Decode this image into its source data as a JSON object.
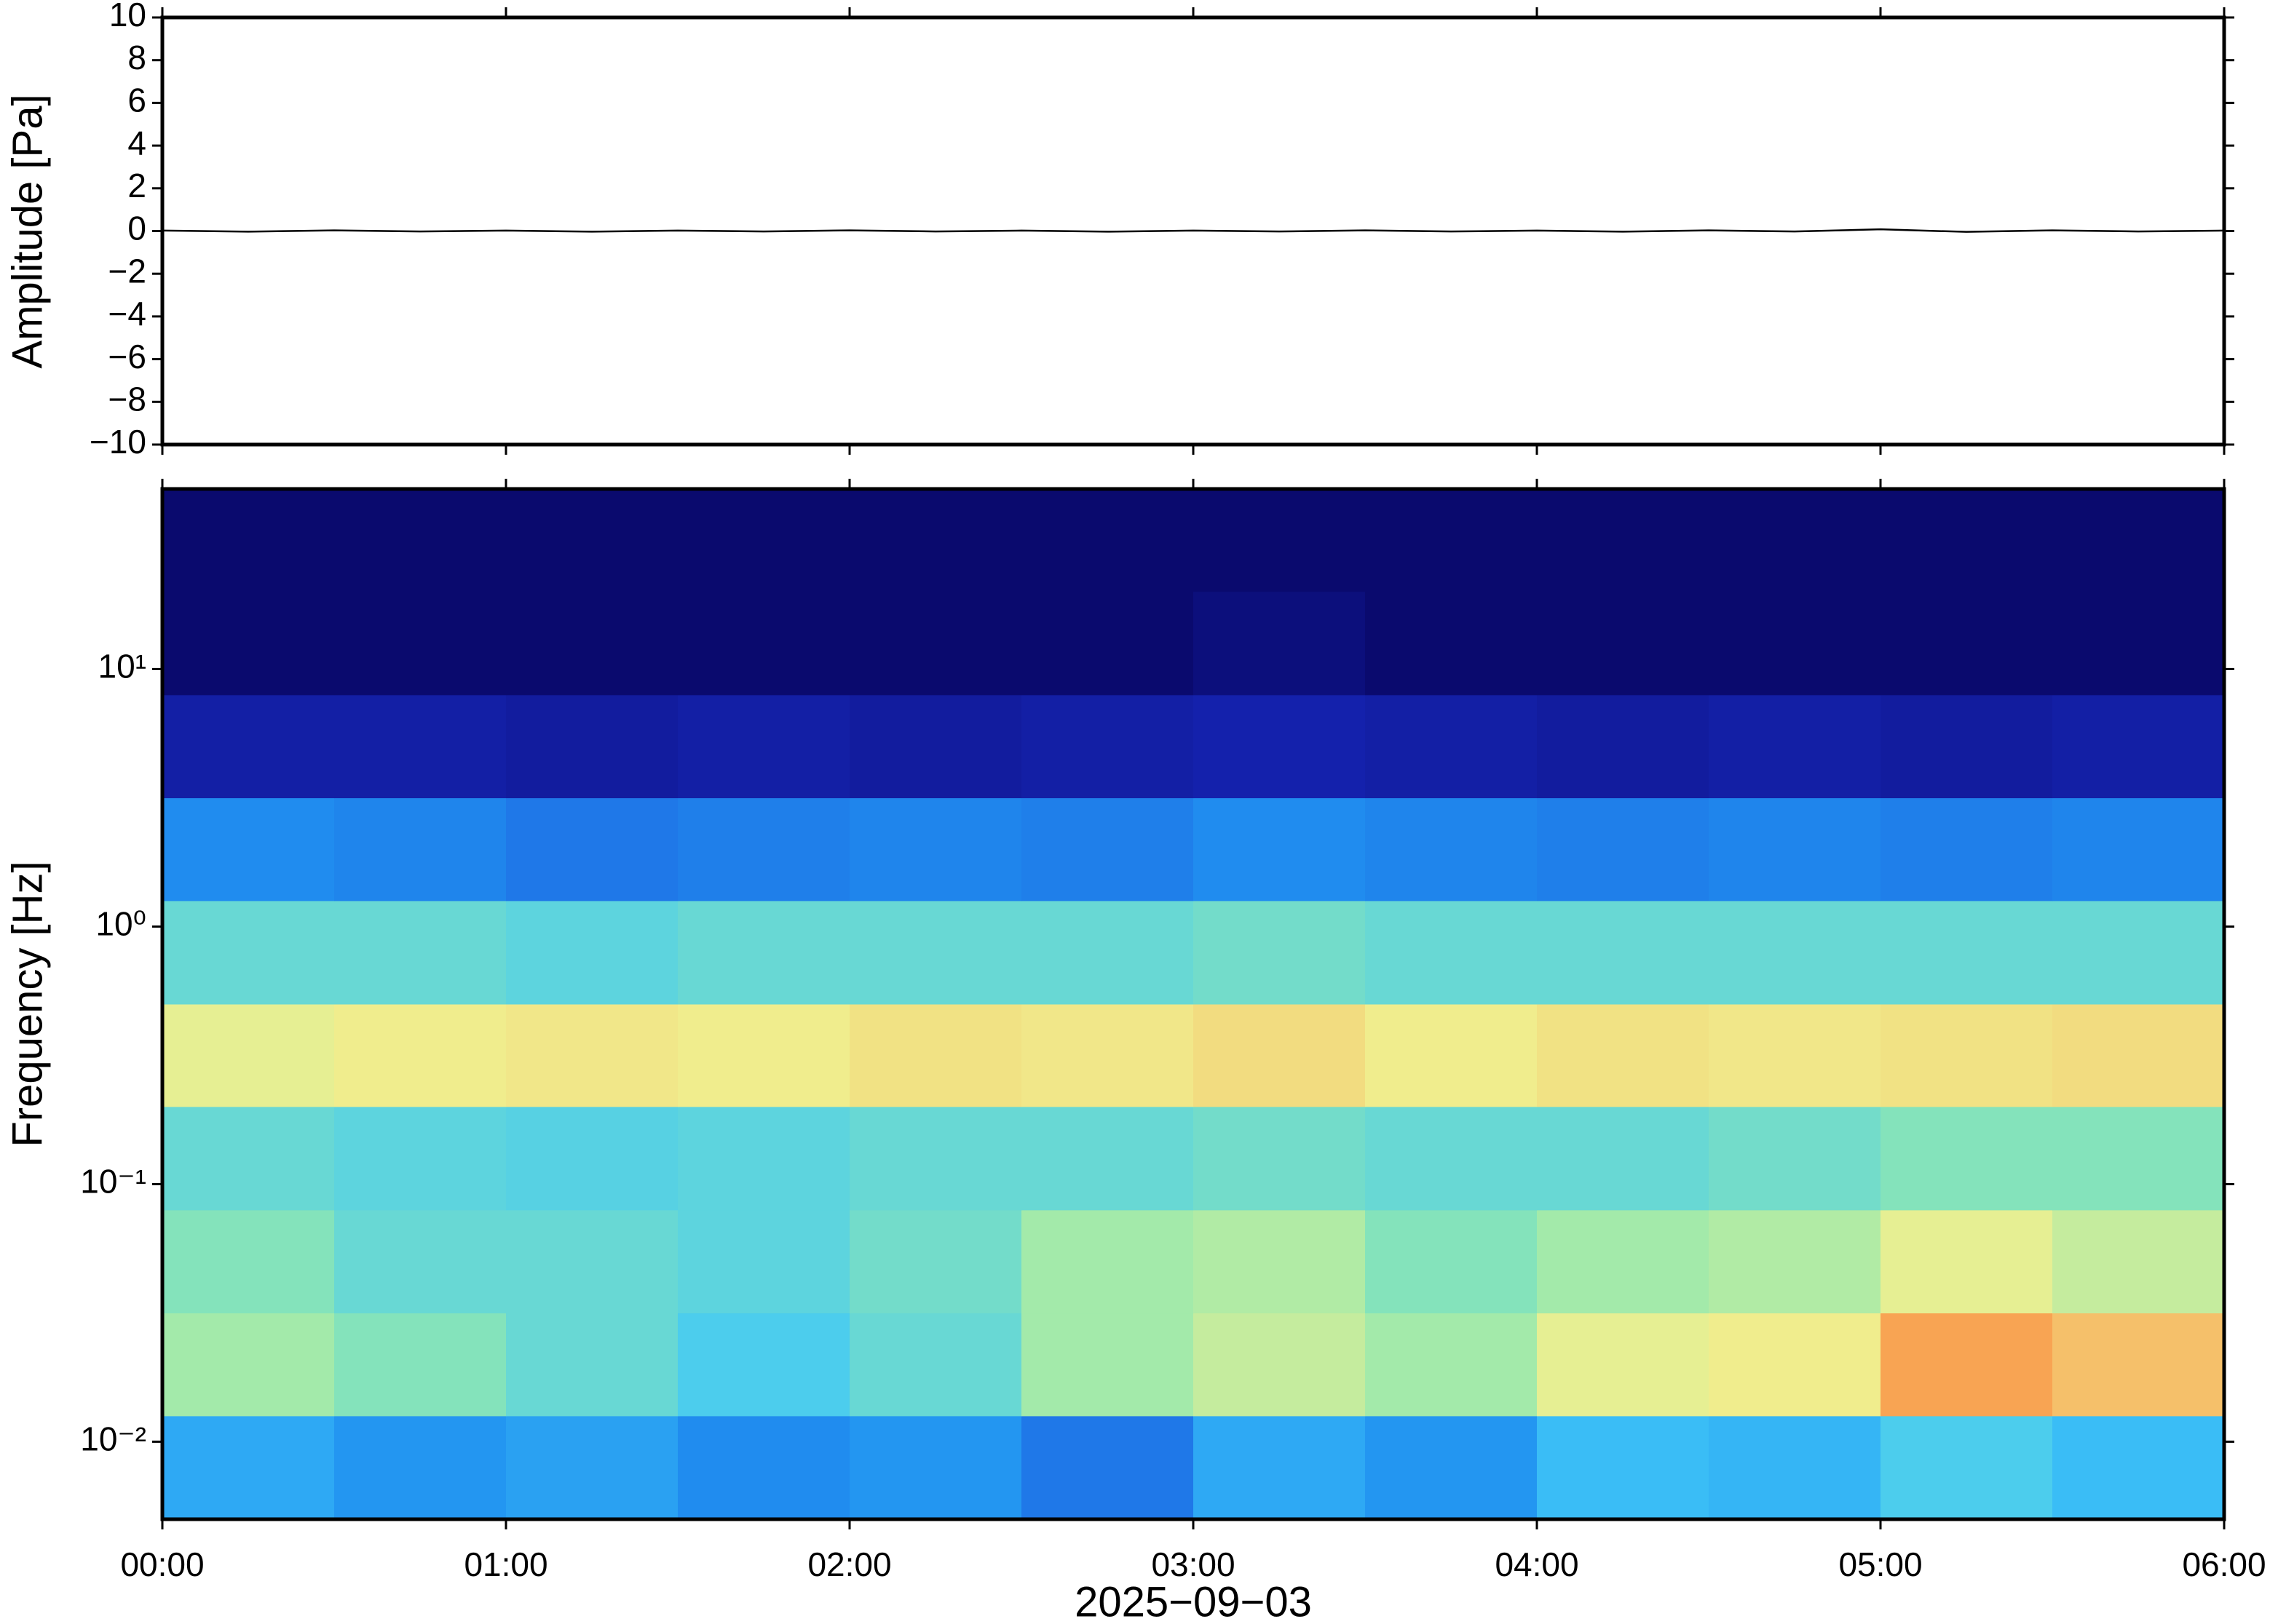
{
  "chart_data": [
    {
      "type": "line",
      "ylabel": "Amplitude [Pa]",
      "xlim": [
        0,
        6
      ],
      "xticks": [
        0,
        1,
        2,
        3,
        4,
        5,
        6
      ],
      "ylim": [
        -10,
        10
      ],
      "yticks": [
        {
          "value": -10,
          "label": "−10"
        },
        {
          "value": -8,
          "label": "−8"
        },
        {
          "value": -6,
          "label": "−6"
        },
        {
          "value": -4,
          "label": "−4"
        },
        {
          "value": -2,
          "label": "−2"
        },
        0,
        2,
        4,
        6,
        8,
        10
      ],
      "x": [
        0,
        0.25,
        0.5,
        0.75,
        1,
        1.25,
        1.5,
        1.75,
        2,
        2.25,
        2.5,
        2.75,
        3,
        3.25,
        3.5,
        3.75,
        4,
        4.25,
        4.5,
        4.75,
        5,
        5.25,
        5.5,
        5.75,
        6
      ],
      "series": [
        {
          "color": "#000000",
          "values": [
            0.02,
            -0.03,
            0.03,
            -0.02,
            0.02,
            -0.03,
            0.02,
            -0.02,
            0.03,
            -0.02,
            0.02,
            -0.03,
            0.02,
            -0.02,
            0.03,
            -0.02,
            0.02,
            -0.03,
            0.03,
            -0.02,
            0.08,
            -0.04,
            0.03,
            -0.02,
            0.02
          ]
        }
      ]
    },
    {
      "type": "heatmap",
      "xlabel": "2025−09−03",
      "ylabel": "Frequency [Hz]",
      "xlim": [
        0,
        6
      ],
      "xticks": [
        {
          "value": 0,
          "label": "00:00"
        },
        {
          "value": 1,
          "label": "01:00"
        },
        {
          "value": 2,
          "label": "02:00"
        },
        {
          "value": 3,
          "label": "03:00"
        },
        {
          "value": 4,
          "label": "04:00"
        },
        {
          "value": 5,
          "label": "05:00"
        },
        {
          "value": 6,
          "label": "06:00"
        }
      ],
      "ylim": [
        0.005,
        50
      ],
      "log_y": true,
      "yticks": [
        {
          "value": 0.01,
          "label": "10⁻²"
        },
        {
          "value": 0.1,
          "label": "10⁻¹"
        },
        {
          "value": 1,
          "label": "10⁰"
        },
        {
          "value": 10,
          "label": "10¹"
        }
      ],
      "x_edges": [
        0,
        0.5,
        1,
        1.5,
        2,
        2.5,
        3,
        3.5,
        4,
        4.5,
        5,
        5.5,
        6
      ],
      "y_edges": [
        0.005,
        0.0126,
        0.0316,
        0.0794,
        0.2,
        0.5,
        1.26,
        3.16,
        7.94,
        20,
        50
      ],
      "zlim": [
        0,
        1
      ],
      "colormap": [
        "#0a0a6e",
        "#1a2fd0",
        "#2090f0",
        "#40c8f8",
        "#90e8b0",
        "#f0f090",
        "#f8a050",
        "#e04020"
      ],
      "z": [
        [
          0.35,
          0.3,
          0.33,
          0.28,
          0.3,
          0.25,
          0.35,
          0.3,
          0.4,
          0.38,
          0.45,
          0.4
        ],
        [
          0.6,
          0.55,
          0.5,
          0.45,
          0.5,
          0.6,
          0.65,
          0.6,
          0.7,
          0.72,
          0.85,
          0.8
        ],
        [
          0.55,
          0.5,
          0.5,
          0.48,
          0.52,
          0.6,
          0.62,
          0.55,
          0.6,
          0.62,
          0.7,
          0.65
        ],
        [
          0.5,
          0.48,
          0.47,
          0.48,
          0.5,
          0.5,
          0.52,
          0.5,
          0.5,
          0.52,
          0.55,
          0.55
        ],
        [
          0.7,
          0.72,
          0.73,
          0.72,
          0.74,
          0.73,
          0.75,
          0.72,
          0.74,
          0.73,
          0.74,
          0.75
        ],
        [
          0.5,
          0.5,
          0.48,
          0.5,
          0.5,
          0.5,
          0.52,
          0.5,
          0.5,
          0.5,
          0.5,
          0.5
        ],
        [
          0.28,
          0.27,
          0.25,
          0.26,
          0.27,
          0.26,
          0.28,
          0.27,
          0.26,
          0.27,
          0.26,
          0.27
        ],
        [
          0.08,
          0.08,
          0.07,
          0.08,
          0.07,
          0.08,
          0.09,
          0.08,
          0.07,
          0.08,
          0.07,
          0.08
        ],
        [
          0,
          0,
          0,
          0,
          0,
          0,
          0.02,
          0,
          0,
          0,
          0,
          0
        ],
        [
          0,
          0,
          0,
          0,
          0,
          0,
          0,
          0,
          0,
          0,
          0,
          0
        ]
      ]
    }
  ]
}
